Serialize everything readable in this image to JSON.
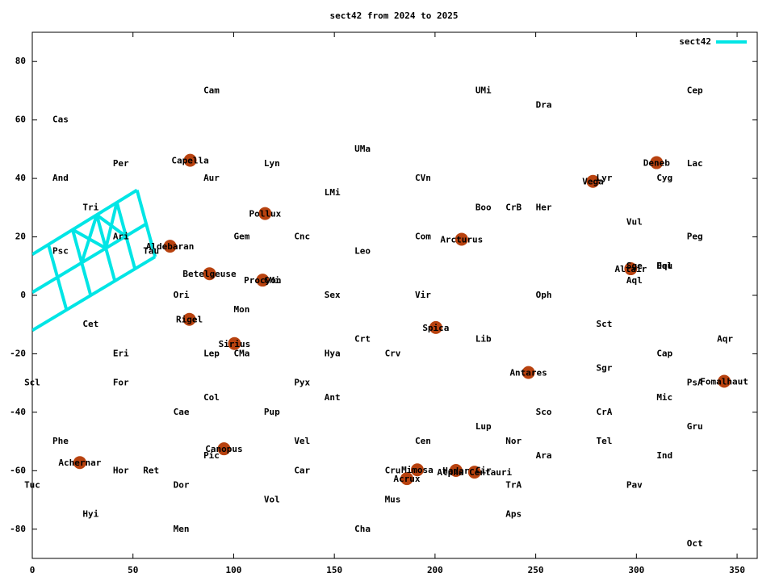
{
  "chart_data": {
    "type": "line",
    "title": "sect42 from 2024 to 2025",
    "xlim": [
      0,
      360
    ],
    "ylim": [
      -90,
      90
    ],
    "xticks": [
      0,
      50,
      100,
      150,
      200,
      250,
      300,
      350
    ],
    "yticks": [
      -80,
      -60,
      -40,
      -20,
      0,
      20,
      40,
      60,
      80
    ],
    "legend": "top-right",
    "series": [
      {
        "name": "sect42",
        "color": "#00e5e5",
        "x": [
          0,
          52,
          null,
          0,
          56.5,
          null,
          0,
          61,
          null,
          8,
          17,
          null,
          20,
          29,
          null,
          32,
          41,
          null,
          42,
          51,
          null,
          52,
          61,
          null,
          20,
          36.5,
          null,
          24.5,
          32,
          null,
          32,
          46.5,
          null,
          36.5,
          42
        ],
        "values": [
          14,
          36,
          null,
          1,
          24.4,
          null,
          -12,
          13.2,
          null,
          17.4,
          -5,
          null,
          22.5,
          0,
          null,
          27.5,
          4.9,
          null,
          31.8,
          9,
          null,
          36,
          13.2,
          null,
          22.5,
          16.1,
          null,
          11.1,
          27.5,
          null,
          27.5,
          20.2,
          null,
          16.1,
          31.8
        ]
      }
    ],
    "stars": {
      "color": "#b8420f",
      "labels": [
        "Capella",
        "Pollux",
        "Aldebaran",
        "Betelgeuse",
        "Procyon",
        "Rigel",
        "Sirius",
        "Canopus",
        "Achernar",
        "Mimosa",
        "Acrux",
        "Hadar",
        "Alpha Centauri",
        "Spica",
        "Arcturus",
        "Antares",
        "Vega",
        "Deneb",
        "Altair",
        "Fomalhaut"
      ],
      "x": [
        78.4,
        115.6,
        68.4,
        88,
        114.4,
        78,
        100.4,
        95.2,
        23.6,
        191.2,
        186,
        210.4,
        219.6,
        200.4,
        213.2,
        246.4,
        278.4,
        310,
        297.2,
        343.6
      ],
      "values": [
        46.2,
        28,
        16.8,
        7.4,
        5.2,
        -8.2,
        -16.5,
        -52.5,
        -57.2,
        -59.7,
        -62.7,
        -59.9,
        -60.5,
        -11,
        19.2,
        -26.4,
        39,
        45.4,
        9.1,
        -29.4
      ]
    },
    "labels": [
      {
        "text": "Cam",
        "x": 89,
        "y": 70
      },
      {
        "text": "UMi",
        "x": 224,
        "y": 70
      },
      {
        "text": "Cep",
        "x": 329,
        "y": 70
      },
      {
        "text": "Dra",
        "x": 254,
        "y": 65
      },
      {
        "text": "Cas",
        "x": 14,
        "y": 60
      },
      {
        "text": "UMa",
        "x": 164,
        "y": 50
      },
      {
        "text": "Per",
        "x": 44,
        "y": 45
      },
      {
        "text": "Lyn",
        "x": 119,
        "y": 45
      },
      {
        "text": "Lac",
        "x": 329,
        "y": 45
      },
      {
        "text": "And",
        "x": 14,
        "y": 40
      },
      {
        "text": "Aur",
        "x": 89,
        "y": 40
      },
      {
        "text": "CVn",
        "x": 194,
        "y": 40
      },
      {
        "text": "Lyr",
        "x": 284,
        "y": 40
      },
      {
        "text": "Cyg",
        "x": 314,
        "y": 40
      },
      {
        "text": "LMi",
        "x": 149,
        "y": 35
      },
      {
        "text": "Tri",
        "x": 29,
        "y": 30
      },
      {
        "text": "Boo",
        "x": 224,
        "y": 30
      },
      {
        "text": "CrB",
        "x": 239,
        "y": 30
      },
      {
        "text": "Her",
        "x": 254,
        "y": 30
      },
      {
        "text": "Vul",
        "x": 299,
        "y": 25
      },
      {
        "text": "Ari",
        "x": 44,
        "y": 20
      },
      {
        "text": "Gem",
        "x": 104,
        "y": 20
      },
      {
        "text": "Cnc",
        "x": 134,
        "y": 20
      },
      {
        "text": "Com",
        "x": 194,
        "y": 20
      },
      {
        "text": "Peg",
        "x": 329,
        "y": 20
      },
      {
        "text": "Psc",
        "x": 14,
        "y": 15
      },
      {
        "text": "Tau",
        "x": 59,
        "y": 15
      },
      {
        "text": "Leo",
        "x": 164,
        "y": 15
      },
      {
        "text": "Sge",
        "x": 299,
        "y": 10
      },
      {
        "text": "Equ",
        "x": 314,
        "y": 10
      },
      {
        "text": "Del",
        "x": 314,
        "y": 10
      },
      {
        "text": "Aql",
        "x": 299,
        "y": 5
      },
      {
        "text": "CMi",
        "x": 119,
        "y": 5
      },
      {
        "text": "Ori",
        "x": 74,
        "y": 0
      },
      {
        "text": "Sex",
        "x": 149,
        "y": 0
      },
      {
        "text": "Vir",
        "x": 194,
        "y": 0
      },
      {
        "text": "Oph",
        "x": 254,
        "y": 0
      },
      {
        "text": "Mon",
        "x": 104,
        "y": -5
      },
      {
        "text": "Cet",
        "x": 29,
        "y": -10
      },
      {
        "text": "Sct",
        "x": 284,
        "y": -10
      },
      {
        "text": "Crt",
        "x": 164,
        "y": -15
      },
      {
        "text": "Lib",
        "x": 224,
        "y": -15
      },
      {
        "text": "Aqr",
        "x": 344,
        "y": -15
      },
      {
        "text": "Eri",
        "x": 44,
        "y": -20
      },
      {
        "text": "Lep",
        "x": 89,
        "y": -20
      },
      {
        "text": "CMa",
        "x": 104,
        "y": -20
      },
      {
        "text": "Hya",
        "x": 149,
        "y": -20
      },
      {
        "text": "Crv",
        "x": 179,
        "y": -20
      },
      {
        "text": "Cap",
        "x": 314,
        "y": -20
      },
      {
        "text": "Sgr",
        "x": 284,
        "y": -25
      },
      {
        "text": "Scl",
        "x": 0,
        "y": -30
      },
      {
        "text": "For",
        "x": 44,
        "y": -30
      },
      {
        "text": "Pyx",
        "x": 134,
        "y": -30
      },
      {
        "text": "PsA",
        "x": 329,
        "y": -30
      },
      {
        "text": "Col",
        "x": 89,
        "y": -35
      },
      {
        "text": "Ant",
        "x": 149,
        "y": -35
      },
      {
        "text": "Mic",
        "x": 314,
        "y": -35
      },
      {
        "text": "Cae",
        "x": 74,
        "y": -40
      },
      {
        "text": "Pup",
        "x": 119,
        "y": -40
      },
      {
        "text": "Sco",
        "x": 254,
        "y": -40
      },
      {
        "text": "CrA",
        "x": 284,
        "y": -40
      },
      {
        "text": "Lup",
        "x": 224,
        "y": -45
      },
      {
        "text": "Gru",
        "x": 329,
        "y": -45
      },
      {
        "text": "Phe",
        "x": 14,
        "y": -50
      },
      {
        "text": "Vel",
        "x": 134,
        "y": -50
      },
      {
        "text": "Cen",
        "x": 194,
        "y": -50
      },
      {
        "text": "Nor",
        "x": 239,
        "y": -50
      },
      {
        "text": "Tel",
        "x": 284,
        "y": -50
      },
      {
        "text": "Pic",
        "x": 89,
        "y": -55
      },
      {
        "text": "Ara",
        "x": 254,
        "y": -55
      },
      {
        "text": "Ind",
        "x": 314,
        "y": -55
      },
      {
        "text": "Hor",
        "x": 44,
        "y": -60
      },
      {
        "text": "Ret",
        "x": 59,
        "y": -60
      },
      {
        "text": "Car",
        "x": 134,
        "y": -60
      },
      {
        "text": "Cru",
        "x": 179,
        "y": -60
      },
      {
        "text": "Cir",
        "x": 224,
        "y": -60
      },
      {
        "text": "Tuc",
        "x": 0,
        "y": -65
      },
      {
        "text": "Dor",
        "x": 74,
        "y": -65
      },
      {
        "text": "TrA",
        "x": 239,
        "y": -65
      },
      {
        "text": "Pav",
        "x": 299,
        "y": -65
      },
      {
        "text": "Vol",
        "x": 119,
        "y": -70
      },
      {
        "text": "Mus",
        "x": 179,
        "y": -70
      },
      {
        "text": "Hyi",
        "x": 29,
        "y": -75
      },
      {
        "text": "Aps",
        "x": 239,
        "y": -75
      },
      {
        "text": "Men",
        "x": 74,
        "y": -80
      },
      {
        "text": "Cha",
        "x": 164,
        "y": -80
      },
      {
        "text": "Oct",
        "x": 329,
        "y": -85
      }
    ]
  }
}
